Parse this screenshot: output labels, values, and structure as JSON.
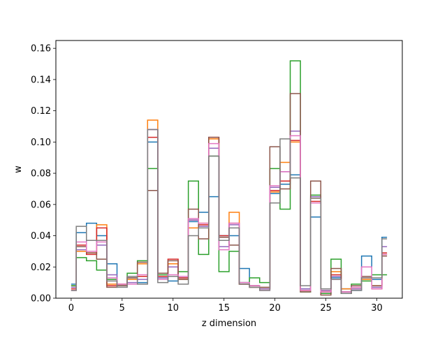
{
  "chart_data": {
    "type": "line",
    "drawstyle": "steps-mid",
    "title": "",
    "xlabel": "z dimension",
    "ylabel": "w",
    "xlim": [
      -1.5,
      32.5
    ],
    "ylim": [
      0.0,
      0.165
    ],
    "x_ticks": [
      0,
      5,
      10,
      15,
      20,
      25,
      30
    ],
    "y_ticks": [
      0.0,
      0.02,
      0.04,
      0.06,
      0.08,
      0.1,
      0.12,
      0.14,
      0.16
    ],
    "y_tick_labels": [
      "0.00",
      "0.02",
      "0.04",
      "0.06",
      "0.08",
      "0.10",
      "0.12",
      "0.14",
      "0.16"
    ],
    "x": [
      0,
      1,
      2,
      3,
      4,
      5,
      6,
      7,
      8,
      9,
      10,
      11,
      12,
      13,
      14,
      15,
      16,
      17,
      18,
      19,
      20,
      21,
      22,
      23,
      24,
      25,
      26,
      27,
      28,
      29,
      30,
      31
    ],
    "grid": false,
    "legend": "none",
    "series": [
      {
        "color": "#1f77b4",
        "values": [
          0.009,
          0.042,
          0.048,
          0.04,
          0.022,
          0.009,
          0.013,
          0.01,
          0.1,
          0.013,
          0.011,
          0.013,
          0.049,
          0.055,
          0.065,
          0.04,
          0.04,
          0.019,
          0.008,
          0.006,
          0.067,
          0.073,
          0.079,
          0.006,
          0.052,
          0.003,
          0.013,
          0.006,
          0.005,
          0.027,
          0.012,
          0.039
        ]
      },
      {
        "color": "#ff7f0e",
        "values": [
          0.008,
          0.03,
          0.029,
          0.047,
          0.009,
          0.009,
          0.012,
          0.022,
          0.114,
          0.014,
          0.022,
          0.012,
          0.045,
          0.048,
          0.102,
          0.039,
          0.055,
          0.009,
          0.007,
          0.006,
          0.068,
          0.087,
          0.1,
          0.005,
          0.064,
          0.005,
          0.017,
          0.006,
          0.006,
          0.012,
          0.008,
          0.028
        ]
      },
      {
        "color": "#2ca02c",
        "values": [
          0.008,
          0.026,
          0.024,
          0.018,
          0.012,
          0.008,
          0.016,
          0.024,
          0.083,
          0.015,
          0.014,
          0.017,
          0.075,
          0.028,
          0.091,
          0.017,
          0.03,
          0.01,
          0.013,
          0.01,
          0.083,
          0.057,
          0.152,
          0.004,
          0.066,
          0.003,
          0.025,
          0.004,
          0.009,
          0.011,
          0.015,
          0.015
        ]
      },
      {
        "color": "#d62728",
        "values": [
          0.006,
          0.034,
          0.028,
          0.045,
          0.008,
          0.009,
          0.014,
          0.014,
          0.103,
          0.014,
          0.025,
          0.013,
          0.05,
          0.047,
          0.103,
          0.04,
          0.048,
          0.009,
          0.008,
          0.006,
          0.069,
          0.075,
          0.101,
          0.005,
          0.062,
          0.004,
          0.015,
          0.004,
          0.006,
          0.013,
          0.006,
          0.029
        ]
      },
      {
        "color": "#9467bd",
        "values": [
          0.007,
          0.031,
          0.037,
          0.034,
          0.015,
          0.008,
          0.01,
          0.012,
          0.108,
          0.013,
          0.02,
          0.014,
          0.05,
          0.046,
          0.096,
          0.033,
          0.047,
          0.01,
          0.007,
          0.006,
          0.071,
          0.081,
          0.107,
          0.006,
          0.065,
          0.005,
          0.014,
          0.004,
          0.006,
          0.02,
          0.007,
          0.033
        ]
      },
      {
        "color": "#8c564b",
        "values": [
          0.005,
          0.033,
          0.029,
          0.025,
          0.007,
          0.008,
          0.013,
          0.023,
          0.069,
          0.016,
          0.024,
          0.012,
          0.057,
          0.038,
          0.103,
          0.039,
          0.034,
          0.009,
          0.007,
          0.007,
          0.097,
          0.07,
          0.131,
          0.004,
          0.075,
          0.002,
          0.019,
          0.003,
          0.008,
          0.014,
          0.008,
          0.027
        ]
      },
      {
        "color": "#e377c2",
        "values": [
          0.005,
          0.036,
          0.03,
          0.036,
          0.013,
          0.009,
          0.009,
          0.015,
          0.108,
          0.012,
          0.015,
          0.014,
          0.051,
          0.048,
          0.099,
          0.031,
          0.048,
          0.01,
          0.008,
          0.005,
          0.072,
          0.081,
          0.104,
          0.005,
          0.061,
          0.004,
          0.012,
          0.004,
          0.007,
          0.02,
          0.006,
          0.028
        ]
      },
      {
        "color": "#7f7f7f",
        "values": [
          0.005,
          0.046,
          0.037,
          0.037,
          0.011,
          0.007,
          0.014,
          0.009,
          0.108,
          0.01,
          0.014,
          0.009,
          0.04,
          0.045,
          0.091,
          0.037,
          0.045,
          0.009,
          0.007,
          0.005,
          0.061,
          0.102,
          0.077,
          0.008,
          0.064,
          0.006,
          0.012,
          0.003,
          0.005,
          0.013,
          0.013,
          0.038
        ]
      }
    ]
  }
}
